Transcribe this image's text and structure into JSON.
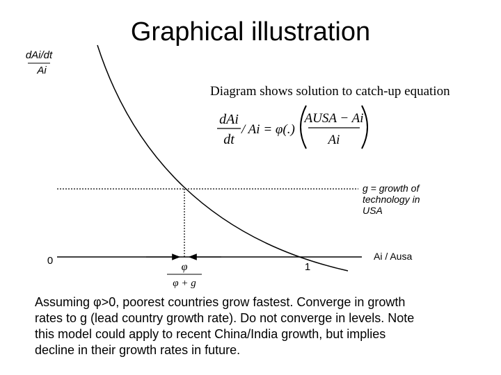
{
  "slide": {
    "title": "Graphical illustration",
    "diagram": {
      "y_label_numerator": "dAi/dt",
      "y_label_denominator": "Ai",
      "origin_label": "0",
      "x_one_label": "1",
      "x_label": "Ai / Ausa",
      "g_note": [
        "g = growth of",
        "technology in",
        "USA"
      ],
      "phi_label": "φ",
      "phi_g_label": "φ + g",
      "heading": "Diagram shows solution to catch-up equation",
      "equation": {
        "lhs_numerator": "dAi",
        "lhs_denominator": "dt",
        "middle": "/ Ai = φ(.)",
        "rhs_numerator": "AUSA − Ai",
        "rhs_denominator": "Ai"
      }
    },
    "caption": [
      "Assuming φ>0, poorest countries grow fastest. Converge in growth",
      "rates to g (lead country growth rate). Do not converge in levels. Note",
      "this model could apply to recent China/India growth, but implies",
      "decline in their growth rates in future."
    ]
  }
}
